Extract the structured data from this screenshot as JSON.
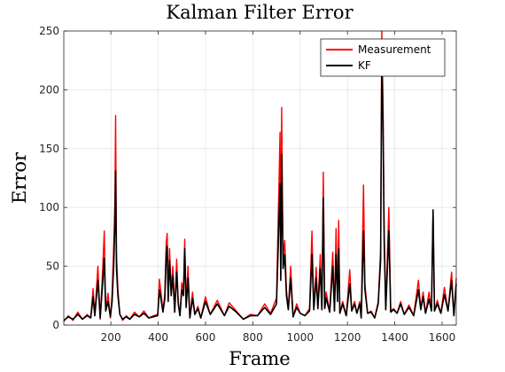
{
  "chart_data": {
    "type": "line",
    "title": "Kalman Filter Error",
    "xlabel": "Frame",
    "ylabel": "Error",
    "xlim": [
      1,
      1660
    ],
    "ylim": [
      0,
      250
    ],
    "xticks": [
      200,
      400,
      600,
      800,
      1000,
      1200,
      1400,
      1600
    ],
    "yticks": [
      0,
      50,
      100,
      150,
      200,
      250
    ],
    "grid": true,
    "legend_position": "top-right",
    "series": [
      {
        "name": "Measurement",
        "color": "#ff0000",
        "points": [
          [
            1,
            3
          ],
          [
            20,
            8
          ],
          [
            40,
            4
          ],
          [
            60,
            11
          ],
          [
            80,
            5
          ],
          [
            100,
            9
          ],
          [
            115,
            6
          ],
          [
            125,
            31
          ],
          [
            132,
            8
          ],
          [
            145,
            50
          ],
          [
            155,
            5
          ],
          [
            165,
            46
          ],
          [
            172,
            80
          ],
          [
            178,
            12
          ],
          [
            188,
            27
          ],
          [
            198,
            6
          ],
          [
            205,
            25
          ],
          [
            212,
            67
          ],
          [
            217,
            105
          ],
          [
            220,
            178
          ],
          [
            224,
            60
          ],
          [
            230,
            30
          ],
          [
            238,
            9
          ],
          [
            250,
            4
          ],
          [
            265,
            8
          ],
          [
            280,
            5
          ],
          [
            300,
            11
          ],
          [
            320,
            7
          ],
          [
            340,
            12
          ],
          [
            360,
            6
          ],
          [
            380,
            8
          ],
          [
            398,
            9
          ],
          [
            405,
            39
          ],
          [
            412,
            28
          ],
          [
            420,
            12
          ],
          [
            428,
            26
          ],
          [
            434,
            70
          ],
          [
            438,
            78
          ],
          [
            442,
            22
          ],
          [
            448,
            65
          ],
          [
            455,
            29
          ],
          [
            462,
            50
          ],
          [
            470,
            12
          ],
          [
            478,
            56
          ],
          [
            485,
            20
          ],
          [
            492,
            8
          ],
          [
            500,
            36
          ],
          [
            507,
            29
          ],
          [
            512,
            73
          ],
          [
            518,
            17
          ],
          [
            526,
            50
          ],
          [
            534,
            6
          ],
          [
            545,
            28
          ],
          [
            555,
            9
          ],
          [
            568,
            16
          ],
          [
            580,
            6
          ],
          [
            600,
            24
          ],
          [
            620,
            9
          ],
          [
            650,
            21
          ],
          [
            680,
            8
          ],
          [
            700,
            19
          ],
          [
            730,
            12
          ],
          [
            760,
            5
          ],
          [
            790,
            9
          ],
          [
            820,
            8
          ],
          [
            850,
            18
          ],
          [
            875,
            10
          ],
          [
            900,
            23
          ],
          [
            915,
            164
          ],
          [
            918,
            40
          ],
          [
            922,
            185
          ],
          [
            928,
            56
          ],
          [
            935,
            72
          ],
          [
            942,
            30
          ],
          [
            950,
            14
          ],
          [
            960,
            50
          ],
          [
            970,
            7
          ],
          [
            985,
            18
          ],
          [
            1000,
            10
          ],
          [
            1020,
            8
          ],
          [
            1040,
            14
          ],
          [
            1050,
            80
          ],
          [
            1058,
            14
          ],
          [
            1068,
            49
          ],
          [
            1075,
            15
          ],
          [
            1085,
            60
          ],
          [
            1092,
            14
          ],
          [
            1098,
            130
          ],
          [
            1104,
            15
          ],
          [
            1110,
            28
          ],
          [
            1125,
            12
          ],
          [
            1138,
            62
          ],
          [
            1145,
            12
          ],
          [
            1152,
            82
          ],
          [
            1158,
            24
          ],
          [
            1163,
            89
          ],
          [
            1168,
            10
          ],
          [
            1180,
            20
          ],
          [
            1195,
            8
          ],
          [
            1210,
            47
          ],
          [
            1218,
            12
          ],
          [
            1230,
            20
          ],
          [
            1240,
            10
          ],
          [
            1252,
            20
          ],
          [
            1258,
            6
          ],
          [
            1268,
            119
          ],
          [
            1274,
            35
          ],
          [
            1285,
            10
          ],
          [
            1300,
            12
          ],
          [
            1315,
            6
          ],
          [
            1330,
            20
          ],
          [
            1340,
            64
          ],
          [
            1345,
            250
          ],
          [
            1350,
            198
          ],
          [
            1355,
            85
          ],
          [
            1362,
            14
          ],
          [
            1375,
            100
          ],
          [
            1383,
            12
          ],
          [
            1395,
            14
          ],
          [
            1410,
            10
          ],
          [
            1425,
            20
          ],
          [
            1440,
            9
          ],
          [
            1460,
            17
          ],
          [
            1480,
            8
          ],
          [
            1500,
            38
          ],
          [
            1510,
            14
          ],
          [
            1520,
            28
          ],
          [
            1530,
            10
          ],
          [
            1545,
            28
          ],
          [
            1555,
            13
          ],
          [
            1562,
            97
          ],
          [
            1568,
            12
          ],
          [
            1580,
            21
          ],
          [
            1595,
            10
          ],
          [
            1610,
            32
          ],
          [
            1625,
            12
          ],
          [
            1640,
            45
          ],
          [
            1650,
            8
          ],
          [
            1660,
            40
          ]
        ]
      },
      {
        "name": "KF",
        "color": "#000000",
        "points": [
          [
            1,
            4
          ],
          [
            20,
            7
          ],
          [
            40,
            5
          ],
          [
            60,
            9
          ],
          [
            80,
            5
          ],
          [
            100,
            8
          ],
          [
            115,
            6
          ],
          [
            125,
            24
          ],
          [
            132,
            8
          ],
          [
            145,
            38
          ],
          [
            155,
            6
          ],
          [
            165,
            35
          ],
          [
            172,
            57
          ],
          [
            178,
            12
          ],
          [
            188,
            20
          ],
          [
            198,
            7
          ],
          [
            205,
            20
          ],
          [
            212,
            50
          ],
          [
            217,
            85
          ],
          [
            220,
            131
          ],
          [
            224,
            48
          ],
          [
            230,
            25
          ],
          [
            238,
            9
          ],
          [
            250,
            5
          ],
          [
            265,
            7
          ],
          [
            280,
            5
          ],
          [
            300,
            9
          ],
          [
            320,
            7
          ],
          [
            340,
            10
          ],
          [
            360,
            6
          ],
          [
            380,
            7
          ],
          [
            398,
            8
          ],
          [
            405,
            30
          ],
          [
            412,
            22
          ],
          [
            420,
            11
          ],
          [
            428,
            22
          ],
          [
            434,
            60
          ],
          [
            438,
            67
          ],
          [
            442,
            20
          ],
          [
            448,
            55
          ],
          [
            455,
            25
          ],
          [
            462,
            42
          ],
          [
            470,
            11
          ],
          [
            478,
            45
          ],
          [
            485,
            18
          ],
          [
            492,
            8
          ],
          [
            500,
            30
          ],
          [
            507,
            25
          ],
          [
            512,
            65
          ],
          [
            518,
            15
          ],
          [
            526,
            40
          ],
          [
            534,
            6
          ],
          [
            545,
            23
          ],
          [
            555,
            9
          ],
          [
            568,
            14
          ],
          [
            580,
            6
          ],
          [
            600,
            20
          ],
          [
            620,
            9
          ],
          [
            650,
            18
          ],
          [
            680,
            8
          ],
          [
            700,
            16
          ],
          [
            730,
            11
          ],
          [
            760,
            5
          ],
          [
            790,
            8
          ],
          [
            820,
            8
          ],
          [
            850,
            15
          ],
          [
            875,
            9
          ],
          [
            900,
            18
          ],
          [
            915,
            120
          ],
          [
            918,
            38
          ],
          [
            922,
            145
          ],
          [
            928,
            48
          ],
          [
            935,
            60
          ],
          [
            942,
            25
          ],
          [
            950,
            13
          ],
          [
            960,
            40
          ],
          [
            970,
            7
          ],
          [
            985,
            15
          ],
          [
            1000,
            10
          ],
          [
            1020,
            8
          ],
          [
            1040,
            12
          ],
          [
            1050,
            60
          ],
          [
            1058,
            13
          ],
          [
            1068,
            40
          ],
          [
            1075,
            14
          ],
          [
            1085,
            48
          ],
          [
            1092,
            13
          ],
          [
            1098,
            108
          ],
          [
            1104,
            14
          ],
          [
            1110,
            23
          ],
          [
            1125,
            11
          ],
          [
            1138,
            50
          ],
          [
            1145,
            12
          ],
          [
            1152,
            60
          ],
          [
            1158,
            20
          ],
          [
            1163,
            65
          ],
          [
            1168,
            10
          ],
          [
            1180,
            18
          ],
          [
            1195,
            8
          ],
          [
            1210,
            35
          ],
          [
            1218,
            12
          ],
          [
            1230,
            18
          ],
          [
            1240,
            10
          ],
          [
            1252,
            18
          ],
          [
            1258,
            6
          ],
          [
            1268,
            80
          ],
          [
            1274,
            30
          ],
          [
            1285,
            10
          ],
          [
            1300,
            11
          ],
          [
            1315,
            6
          ],
          [
            1330,
            18
          ],
          [
            1340,
            55
          ],
          [
            1345,
            220
          ],
          [
            1350,
            180
          ],
          [
            1355,
            72
          ],
          [
            1362,
            13
          ],
          [
            1375,
            80
          ],
          [
            1383,
            11
          ],
          [
            1395,
            13
          ],
          [
            1410,
            10
          ],
          [
            1425,
            18
          ],
          [
            1440,
            9
          ],
          [
            1460,
            15
          ],
          [
            1480,
            8
          ],
          [
            1500,
            30
          ],
          [
            1510,
            13
          ],
          [
            1520,
            24
          ],
          [
            1530,
            10
          ],
          [
            1545,
            22
          ],
          [
            1555,
            12
          ],
          [
            1562,
            98
          ],
          [
            1568,
            12
          ],
          [
            1580,
            18
          ],
          [
            1595,
            10
          ],
          [
            1610,
            26
          ],
          [
            1625,
            12
          ],
          [
            1640,
            38
          ],
          [
            1650,
            8
          ],
          [
            1660,
            35
          ]
        ]
      }
    ]
  }
}
